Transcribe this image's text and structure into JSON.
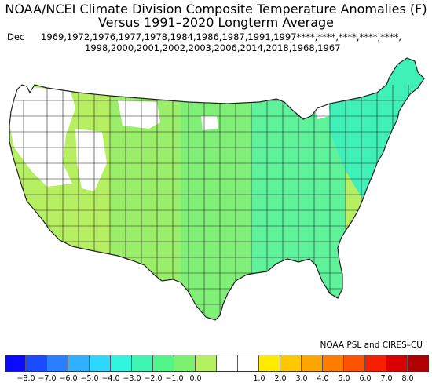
{
  "title_line1": "NOAA/NCEI Climate Division Composite Temperature Anomalies (F)",
  "title_line2": "Versus 1991–2020 Longterm Average",
  "month": "Dec",
  "years_line1": "1969,1972,1976,1977,1978,1984,1986,1987,1991,1997****,****,****,****,****,",
  "years_line2": "1998,2000,2001,2002,2003,2006,2014,2018,1968,1967",
  "credit": "NOAA PSL and CIRES–CU",
  "colorbar": {
    "colors": [
      "#0a0aff",
      "#1a4bff",
      "#2a7fff",
      "#30b0ff",
      "#2fd8ff",
      "#32f5e0",
      "#3cf6b2",
      "#52f58c",
      "#7df070",
      "#b4f060",
      "#ffffff",
      "#ffffff",
      "#ffea00",
      "#ffc800",
      "#ffa400",
      "#ff7c00",
      "#ff5200",
      "#f52000",
      "#d80000",
      "#b00000"
    ],
    "tick_labels": [
      "−8.0",
      "−7.0",
      "−6.0",
      "−5.0",
      "−4.0",
      "−3.0",
      "−2.0",
      "−1.0",
      "0.0",
      "1.0",
      "2.0",
      "3.0",
      "4.0",
      "5.0",
      "6.0",
      "7.0",
      "8.0"
    ],
    "range": [
      -8,
      8
    ]
  },
  "map": {
    "region": "Contiguous United States",
    "legend_colors": {
      "no_data": "#ffffff",
      "northeast": "#3ff0b8",
      "east": "#5ef29a",
      "central": "#7fef78",
      "plains": "#9aee6a",
      "west": "#b6f062",
      "border": "#222222"
    }
  }
}
